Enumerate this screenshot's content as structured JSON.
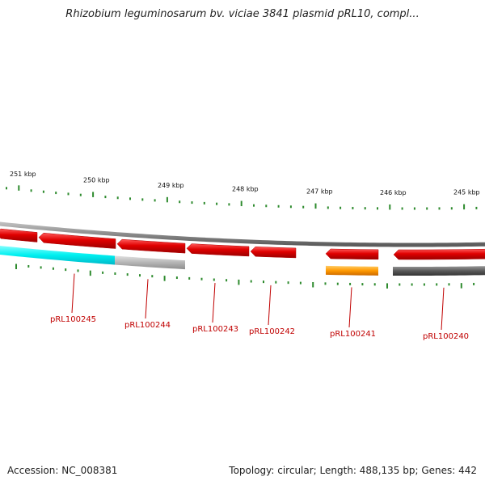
{
  "title": "Rhizobium leguminosarum bv. viciae 3841 plasmid pRL10, compl...",
  "footer": {
    "accession": "Accession: NC_008381",
    "summary": "Topology: circular; Length: 488,135 bp; Genes: 442"
  },
  "colors": {
    "backbone": "#8a8a8a",
    "forward_cds": "#e00000",
    "cyan_band": "#00f0f0",
    "gray_band": "#b5b5b5",
    "orange_band": "#ff9900",
    "dark_band": "#5a5a5a",
    "tick": "#2e8b2e",
    "label": "#c00000"
  },
  "kbp_labels": [
    "251 kbp",
    "250 kbp",
    "249 kbp",
    "248 kbp",
    "247 kbp",
    "246 kbp",
    "245 kbp"
  ],
  "genes": [
    {
      "name": "pRL100245"
    },
    {
      "name": "pRL100244"
    },
    {
      "name": "pRL100243"
    },
    {
      "name": "pRL100242"
    },
    {
      "name": "pRL100241"
    },
    {
      "name": "pRL100240"
    }
  ]
}
